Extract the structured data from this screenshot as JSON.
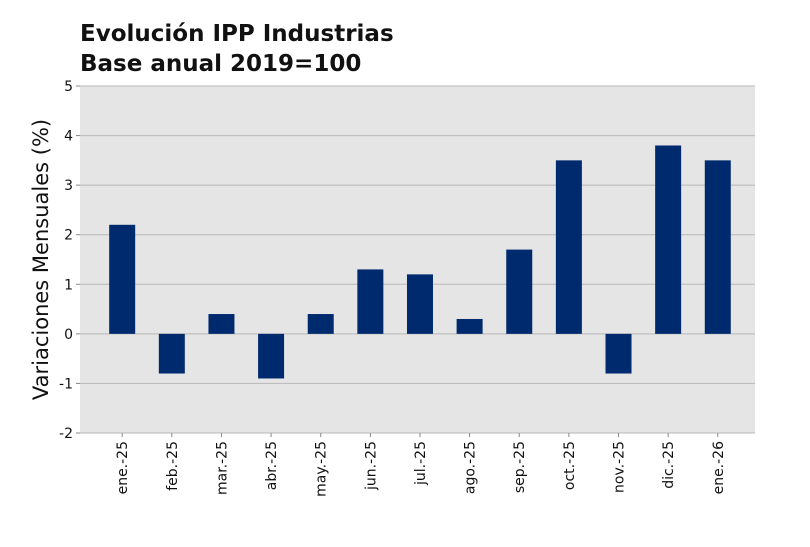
{
  "chart_data": {
    "type": "bar",
    "title_lines": [
      "Evolución IPP Industrias",
      "Base anual 2019=100"
    ],
    "xlabel": "",
    "ylabel": "Variaciones Mensuales (%)",
    "categories": [
      "ene.-25",
      "feb.-25",
      "mar.-25",
      "abr.-25",
      "may.-25",
      "jun.-25",
      "jul.-25",
      "ago.-25",
      "sep.-25",
      "oct.-25",
      "nov.-25",
      "dic.-25",
      "ene.-26"
    ],
    "values": [
      2.2,
      -0.8,
      0.4,
      -0.9,
      0.4,
      1.3,
      1.2,
      0.3,
      1.7,
      3.5,
      -0.8,
      3.8,
      3.5
    ],
    "ylim": [
      -2,
      5
    ],
    "yticks": [
      5,
      4,
      3,
      2,
      1,
      0,
      -1,
      -2
    ],
    "grid": true,
    "bar_color": "#002A6E",
    "plot_background": "#E5E5E5",
    "grid_color": "#B8B8B8"
  }
}
